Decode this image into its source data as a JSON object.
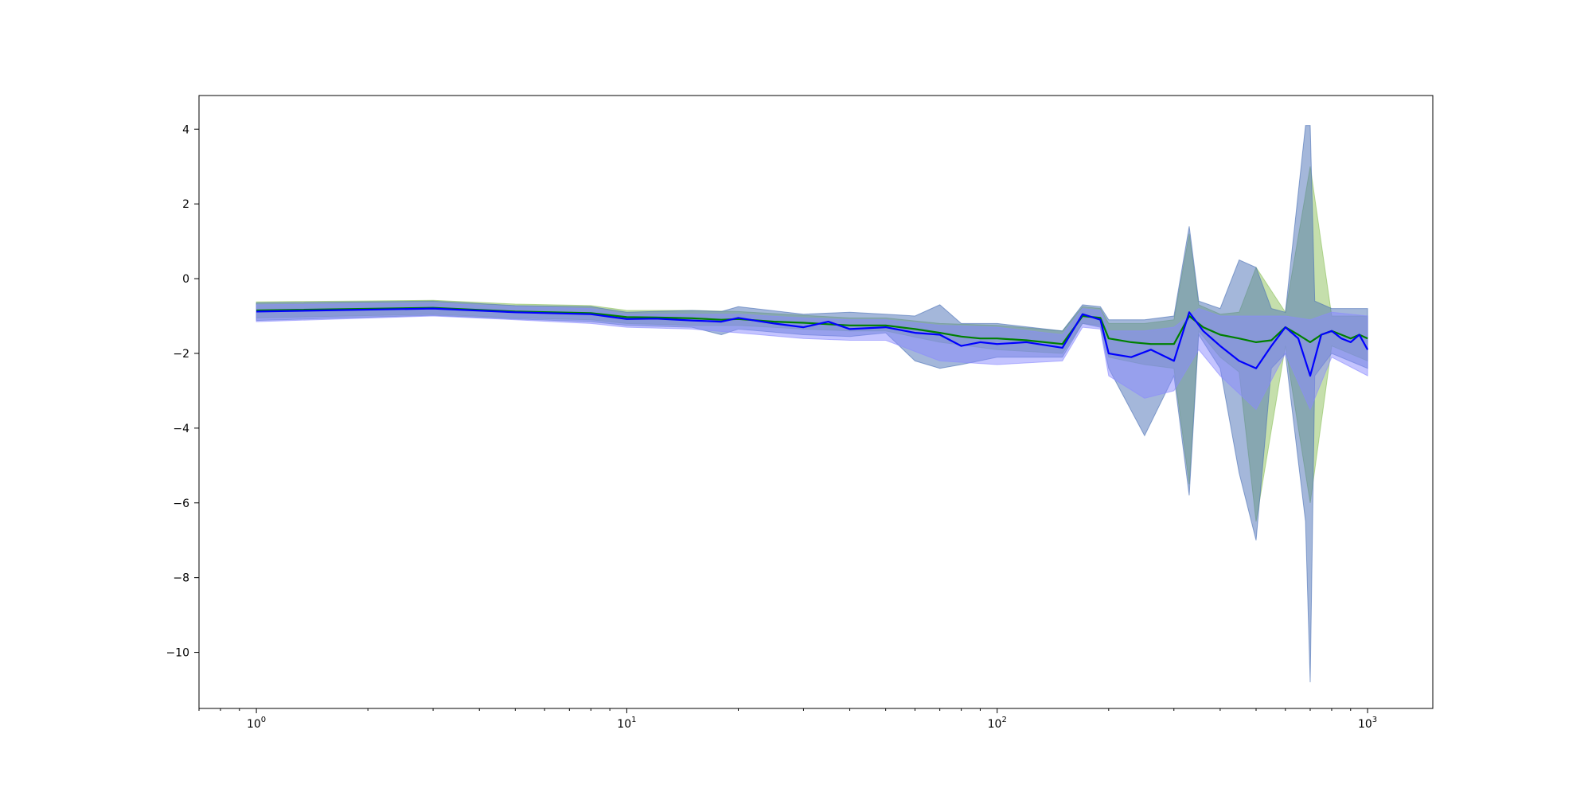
{
  "chart_data": {
    "type": "line",
    "title": "",
    "xlabel": "",
    "ylabel": "",
    "x_scale": "log",
    "xlim": [
      0.7,
      1500
    ],
    "ylim": [
      -11.5,
      4.9
    ],
    "grid": false,
    "x_ticks": [
      {
        "value": 1,
        "base": "10",
        "exp": "0"
      },
      {
        "value": 10,
        "base": "10",
        "exp": "1"
      },
      {
        "value": 100,
        "base": "10",
        "exp": "2"
      },
      {
        "value": 1000,
        "base": "10",
        "exp": "3"
      }
    ],
    "y_ticks": [
      {
        "value": 4,
        "label": "4"
      },
      {
        "value": 2,
        "label": "2"
      },
      {
        "value": 0,
        "label": "0"
      },
      {
        "value": -2,
        "label": "−2"
      },
      {
        "value": -4,
        "label": "−4"
      },
      {
        "value": -6,
        "label": "−6"
      },
      {
        "value": -8,
        "label": "−8"
      },
      {
        "value": -10,
        "label": "−10"
      }
    ],
    "colors": {
      "green": "#008000",
      "blue": "#0000ff",
      "band_green": "#8bbf5a",
      "band_blue": "#4a6fb5",
      "band_light_blue": "#8a8aff"
    },
    "series": [
      {
        "color": "#008000",
        "x": [
          1,
          3,
          5,
          8,
          10,
          12,
          15,
          18,
          20,
          25,
          30,
          35,
          40,
          50,
          60,
          70,
          80,
          90,
          100,
          120,
          150,
          170,
          190,
          200,
          230,
          260,
          300,
          330,
          360,
          400,
          450,
          500,
          550,
          600,
          650,
          700,
          750,
          800,
          850,
          900,
          950,
          1000
        ],
        "y": [
          -0.85,
          -0.78,
          -0.88,
          -0.92,
          -1.03,
          -1.04,
          -1.06,
          -1.1,
          -1.08,
          -1.15,
          -1.18,
          -1.22,
          -1.25,
          -1.25,
          -1.35,
          -1.45,
          -1.55,
          -1.6,
          -1.6,
          -1.65,
          -1.75,
          -1.0,
          -1.05,
          -1.6,
          -1.7,
          -1.75,
          -1.75,
          -1.0,
          -1.3,
          -1.5,
          -1.6,
          -1.7,
          -1.65,
          -1.3,
          -1.5,
          -1.7,
          -1.5,
          -1.4,
          -1.5,
          -1.6,
          -1.5,
          -1.6
        ]
      },
      {
        "color": "#0000ff",
        "x": [
          1,
          3,
          5,
          8,
          10,
          12,
          15,
          18,
          20,
          25,
          30,
          35,
          40,
          50,
          60,
          70,
          80,
          90,
          100,
          120,
          150,
          170,
          190,
          200,
          230,
          260,
          300,
          330,
          360,
          400,
          450,
          500,
          550,
          600,
          650,
          700,
          750,
          800,
          850,
          900,
          950,
          1000
        ],
        "y": [
          -0.88,
          -0.8,
          -0.9,
          -0.95,
          -1.08,
          -1.07,
          -1.12,
          -1.15,
          -1.05,
          -1.2,
          -1.3,
          -1.15,
          -1.35,
          -1.3,
          -1.45,
          -1.5,
          -1.8,
          -1.7,
          -1.75,
          -1.7,
          -1.85,
          -0.95,
          -1.1,
          -2.0,
          -2.1,
          -1.9,
          -2.2,
          -0.9,
          -1.4,
          -1.8,
          -2.2,
          -2.4,
          -1.8,
          -1.3,
          -1.6,
          -2.6,
          -1.5,
          -1.4,
          -1.6,
          -1.7,
          -1.5,
          -1.9
        ]
      }
    ],
    "bands": [
      {
        "color": "#8bbf5a",
        "x": [
          1,
          3,
          5,
          8,
          10,
          15,
          20,
          30,
          40,
          50,
          70,
          100,
          150,
          170,
          190,
          200,
          250,
          300,
          330,
          350,
          400,
          450,
          500,
          600,
          700,
          800,
          1000
        ],
        "lower": [
          -1.05,
          -0.95,
          -1.05,
          -1.1,
          -1.2,
          -1.25,
          -1.25,
          -1.35,
          -1.4,
          -1.4,
          -1.7,
          -1.9,
          -2.0,
          -1.2,
          -1.25,
          -2.1,
          -2.3,
          -2.4,
          -5.5,
          -1.4,
          -2.1,
          -2.5,
          -6.5,
          -1.8,
          -6.0,
          -1.8,
          -2.2
        ],
        "upper": [
          -0.62,
          -0.58,
          -0.68,
          -0.72,
          -0.85,
          -0.85,
          -0.88,
          -0.98,
          -1.05,
          -1.05,
          -1.2,
          -1.25,
          -1.4,
          -0.75,
          -0.8,
          -1.2,
          -1.2,
          -1.1,
          1.2,
          -0.7,
          -0.95,
          -0.9,
          0.3,
          -0.9,
          3.0,
          -1.0,
          -1.0
        ]
      },
      {
        "color": "#4a6fb5",
        "x": [
          1,
          3,
          5,
          8,
          10,
          15,
          18,
          20,
          30,
          40,
          50,
          60,
          70,
          80,
          100,
          150,
          170,
          190,
          200,
          250,
          300,
          330,
          350,
          400,
          450,
          500,
          550,
          600,
          680,
          700,
          720,
          800,
          1000
        ],
        "lower": [
          -1.12,
          -0.98,
          -1.08,
          -1.15,
          -1.25,
          -1.3,
          -1.5,
          -1.35,
          -1.5,
          -1.55,
          -1.45,
          -2.2,
          -2.4,
          -2.3,
          -2.1,
          -2.1,
          -1.2,
          -1.3,
          -2.4,
          -4.2,
          -2.6,
          -5.8,
          -1.5,
          -2.4,
          -5.2,
          -7.0,
          -2.4,
          -2.0,
          -6.5,
          -10.8,
          -2.6,
          -2.0,
          -2.4
        ],
        "upper": [
          -0.65,
          -0.6,
          -0.72,
          -0.75,
          -0.9,
          -0.85,
          -0.88,
          -0.75,
          -0.95,
          -0.9,
          -0.95,
          -1.0,
          -0.7,
          -1.2,
          -1.2,
          -1.4,
          -0.7,
          -0.75,
          -1.1,
          -1.1,
          -1.0,
          1.4,
          -0.6,
          -0.8,
          0.5,
          0.3,
          -0.8,
          -0.9,
          4.1,
          4.1,
          -0.6,
          -0.8,
          -0.8
        ]
      },
      {
        "color": "#8a8aff",
        "x": [
          1,
          3,
          5,
          8,
          10,
          15,
          20,
          30,
          40,
          50,
          70,
          100,
          150,
          170,
          190,
          200,
          250,
          300,
          350,
          400,
          500,
          600,
          700,
          800,
          1000
        ],
        "lower": [
          -1.15,
          -1.0,
          -1.1,
          -1.2,
          -1.3,
          -1.35,
          -1.45,
          -1.6,
          -1.65,
          -1.65,
          -2.2,
          -2.3,
          -2.2,
          -1.3,
          -1.35,
          -2.6,
          -3.2,
          -3.0,
          -1.9,
          -2.6,
          -3.5,
          -2.0,
          -3.5,
          -2.1,
          -2.6
        ],
        "upper": [
          -0.7,
          -0.65,
          -0.75,
          -0.8,
          -0.95,
          -0.95,
          -0.95,
          -1.05,
          -1.1,
          -1.1,
          -1.25,
          -1.3,
          -1.5,
          -0.8,
          -0.85,
          -1.4,
          -1.4,
          -1.3,
          -0.8,
          -1.0,
          -1.0,
          -1.0,
          -1.1,
          -0.9,
          -1.0
        ]
      }
    ]
  }
}
